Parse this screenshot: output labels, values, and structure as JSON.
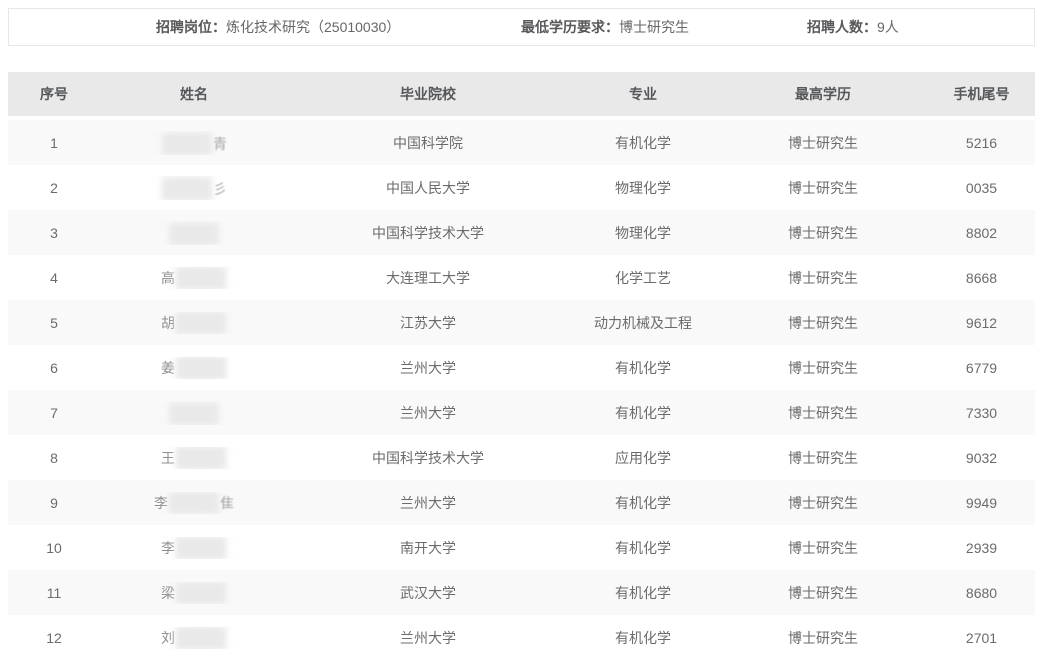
{
  "topbar": {
    "position_label": "招聘岗位：",
    "position_value": "炼化技术研究（25010030）",
    "min_degree_label": "最低学历要求：",
    "min_degree_value": "博士研究生",
    "headcount_label": "招聘人数：",
    "headcount_value": "9人"
  },
  "table": {
    "columns": [
      "序号",
      "姓名",
      "毕业院校",
      "专业",
      "最高学历",
      "手机尾号"
    ],
    "rows": [
      {
        "no": "1",
        "name_visible": "",
        "name_frag": "青",
        "school": "中国科学院",
        "major": "有机化学",
        "degree": "博士研究生",
        "phone_tail": "5216"
      },
      {
        "no": "2",
        "name_visible": "",
        "name_frag": "彡",
        "school": "中国人民大学",
        "major": "物理化学",
        "degree": "博士研究生",
        "phone_tail": "0035"
      },
      {
        "no": "3",
        "name_visible": "",
        "name_frag": "",
        "school": "中国科学技术大学",
        "major": "物理化学",
        "degree": "博士研究生",
        "phone_tail": "8802"
      },
      {
        "no": "4",
        "name_visible": "高",
        "name_frag": "",
        "school": "大连理工大学",
        "major": "化学工艺",
        "degree": "博士研究生",
        "phone_tail": "8668"
      },
      {
        "no": "5",
        "name_visible": "胡",
        "name_frag": "",
        "school": "江苏大学",
        "major": "动力机械及工程",
        "degree": "博士研究生",
        "phone_tail": "9612"
      },
      {
        "no": "6",
        "name_visible": "姜",
        "name_frag": "",
        "school": "兰州大学",
        "major": "有机化学",
        "degree": "博士研究生",
        "phone_tail": "6779"
      },
      {
        "no": "7",
        "name_visible": "",
        "name_frag": "",
        "school": "兰州大学",
        "major": "有机化学",
        "degree": "博士研究生",
        "phone_tail": "7330"
      },
      {
        "no": "8",
        "name_visible": "王",
        "name_frag": "",
        "school": "中国科学技术大学",
        "major": "应用化学",
        "degree": "博士研究生",
        "phone_tail": "9032"
      },
      {
        "no": "9",
        "name_visible": "李",
        "name_frag": "隹",
        "school": "兰州大学",
        "major": "有机化学",
        "degree": "博士研究生",
        "phone_tail": "9949"
      },
      {
        "no": "10",
        "name_visible": "李",
        "name_frag": "",
        "school": "南开大学",
        "major": "有机化学",
        "degree": "博士研究生",
        "phone_tail": "2939"
      },
      {
        "no": "11",
        "name_visible": "梁",
        "name_frag": "",
        "school": "武汉大学",
        "major": "有机化学",
        "degree": "博士研究生",
        "phone_tail": "8680"
      },
      {
        "no": "12",
        "name_visible": "刘",
        "name_frag": "",
        "school": "兰州大学",
        "major": "有机化学",
        "degree": "博士研究生",
        "phone_tail": "2701"
      }
    ]
  },
  "colors": {
    "header_bg": "#e9e9e9",
    "odd_row_bg": "#f9f9f9",
    "even_row_bg": "#ffffff",
    "header_text": "#55575a",
    "cell_text": "#6b6b6b",
    "topbar_border": "#e7e7e7"
  }
}
